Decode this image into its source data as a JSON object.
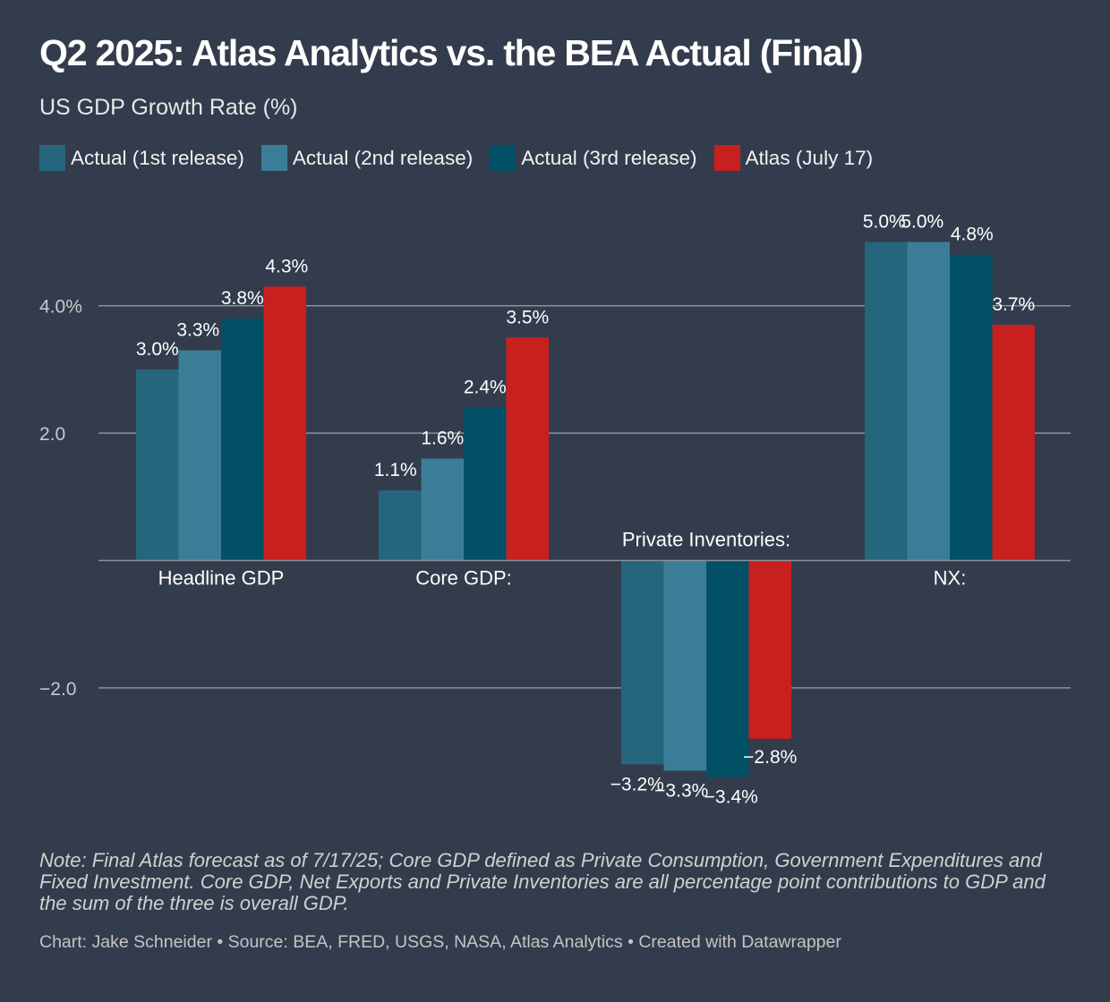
{
  "header": {
    "title": "Q2 2025: Atlas Analytics vs. the BEA Actual (Final)",
    "subtitle": "US GDP Growth Rate (%)"
  },
  "legend": [
    {
      "label": "Actual (1st release)",
      "color": "#25667d"
    },
    {
      "label": "Actual (2nd release)",
      "color": "#3b7d97"
    },
    {
      "label": "Actual (3rd release)",
      "color": "#025066"
    },
    {
      "label": "Atlas (July 17)",
      "color": "#c81f1f"
    }
  ],
  "chart_data": {
    "type": "bar",
    "categories": [
      "Headline GDP",
      "Core GDP:",
      "Private Inventories:",
      "NX:"
    ],
    "series": [
      {
        "name": "Actual (1st release)",
        "color": "#25667d",
        "values": [
          3.0,
          1.1,
          -3.2,
          5.0
        ],
        "labels": [
          "3.0%",
          "1.1%",
          "−3.2%",
          "5.0%"
        ]
      },
      {
        "name": "Actual (2nd release)",
        "color": "#3b7d97",
        "values": [
          3.3,
          1.6,
          -3.3,
          5.0
        ],
        "labels": [
          "3.3%",
          "1.6%",
          "−3.3%",
          "5.0%"
        ]
      },
      {
        "name": "Actual (3rd release)",
        "color": "#025066",
        "values": [
          3.8,
          2.4,
          -3.4,
          4.8
        ],
        "labels": [
          "3.8%",
          "2.4%",
          "−3.4%",
          "4.8%"
        ]
      },
      {
        "name": "Atlas (July 17)",
        "color": "#c81f1f",
        "values": [
          4.3,
          3.5,
          -2.8,
          3.7
        ],
        "labels": [
          "4.3%",
          "3.5%",
          "−2.8%",
          "3.7%"
        ]
      }
    ],
    "y_ticks": [
      {
        "value": 4,
        "label": "4.0%"
      },
      {
        "value": 2,
        "label": "2.0"
      },
      {
        "value": -2,
        "label": "−2.0"
      }
    ],
    "ylim": [
      -4,
      5.5
    ],
    "grid": true
  },
  "note": "Note: Final Atlas forecast as of 7/17/25; Core GDP defined as Private Consumption, Government Expenditures and Fixed Investment. Core GDP, Net Exports and Private Inventories are all percentage point contributions to GDP and the sum of the three is overall GDP.",
  "credit": "Chart: Jake Schneider • Source: BEA, FRED, USGS, NASA, Atlas Analytics • Created with Datawrapper",
  "colors": {
    "background": "#333c4c",
    "grid": "#8a9099",
    "text": "#ffffff",
    "tick_text": "#c6c9ce"
  }
}
